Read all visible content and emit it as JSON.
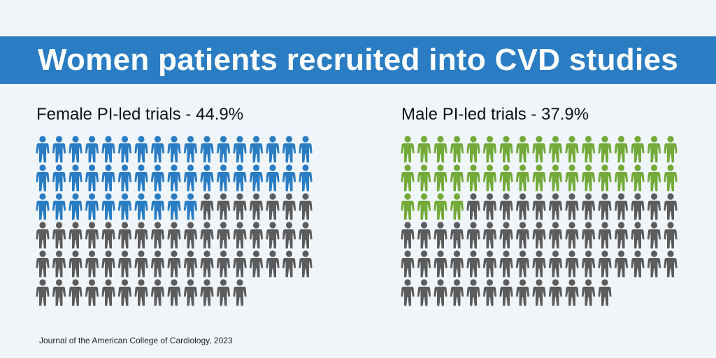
{
  "banner": {
    "title": "Women patients recruited into CVD studies"
  },
  "source": "Journal of the American College of Cardiology, 2023",
  "colors": {
    "background": "#f0f5fa",
    "banner": "#2a7dc3",
    "female_pi": "#2a7dc3",
    "male_pi": "#73aa3a",
    "other": "#5c5c5c"
  },
  "chart_data": [
    {
      "type": "pictogram",
      "title": "Female PI-led trials - 44.9%",
      "value_percent": 44.9,
      "total_icons": 98,
      "highlighted_icons": 44,
      "icons_per_row": 17,
      "highlight_color": "#2a7dc3",
      "other_color": "#5c5c5c"
    },
    {
      "type": "pictogram",
      "title": "Male PI-led trials - 37.9%",
      "value_percent": 37.9,
      "total_icons": 98,
      "highlighted_icons": 38,
      "icons_per_row": 17,
      "highlight_color": "#73aa3a",
      "other_color": "#5c5c5c"
    }
  ]
}
